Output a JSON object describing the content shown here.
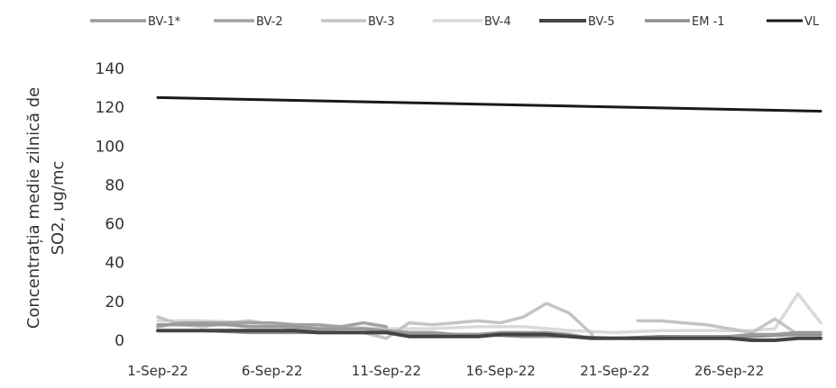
{
  "chart_data": {
    "type": "line",
    "title": "",
    "xlabel": "",
    "ylabel_lines": [
      "Concentrația medie zilnică de",
      "SO2, ug/mc"
    ],
    "ylim": [
      0,
      140
    ],
    "yticks": [
      "0",
      "20",
      "40",
      "60",
      "80",
      "100",
      "120",
      "140"
    ],
    "x_start": "2022-09-01",
    "x_end": "2022-09-30",
    "xtick_labels": [
      {
        "day": 1,
        "label": "1-Sep-22"
      },
      {
        "day": 6,
        "label": "6-Sep-22"
      },
      {
        "day": 11,
        "label": "11-Sep-22"
      },
      {
        "day": 16,
        "label": "16-Sep-22"
      },
      {
        "day": 21,
        "label": "21-Sep-22"
      },
      {
        "day": 26,
        "label": "26-Sep-22"
      }
    ],
    "grid": false,
    "legend_position": "top",
    "series": [
      {
        "name": "BV-1*",
        "color": "#9a9a9a",
        "width": 3.5,
        "points": [
          [
            1,
            8
          ],
          [
            2,
            8
          ],
          [
            3,
            8
          ],
          [
            4,
            8
          ],
          [
            5,
            7
          ],
          [
            6,
            7
          ],
          [
            7,
            7
          ],
          [
            8,
            6
          ],
          [
            9,
            6
          ],
          [
            10,
            6
          ],
          [
            11,
            5
          ],
          [
            12,
            4
          ],
          [
            13,
            4
          ],
          [
            14,
            3
          ],
          [
            15,
            3
          ],
          [
            16,
            4
          ],
          [
            17,
            4
          ],
          [
            18,
            4
          ],
          [
            19,
            3
          ],
          [
            20,
            1
          ],
          [
            21,
            1
          ],
          [
            22,
            1
          ],
          [
            23,
            1
          ],
          [
            24,
            2
          ],
          [
            25,
            2
          ],
          [
            26,
            2
          ],
          [
            27,
            3
          ],
          [
            28,
            3
          ],
          [
            29,
            4
          ],
          [
            30,
            4
          ]
        ]
      },
      {
        "name": "BV-2",
        "color": "#a3a3a3",
        "width": 3.5,
        "points": [
          [
            1,
            7
          ],
          [
            2,
            9
          ],
          [
            3,
            9
          ],
          [
            4,
            9
          ],
          [
            5,
            9
          ],
          [
            6,
            9
          ],
          [
            7,
            8
          ],
          [
            8,
            8
          ],
          [
            9,
            7
          ],
          [
            10,
            9
          ],
          [
            11,
            7
          ]
        ]
      },
      {
        "name": "BV-3",
        "color": "#c4c4c4",
        "width": 3.5,
        "points": [
          [
            1,
            12
          ],
          [
            2,
            8
          ],
          [
            3,
            7
          ],
          [
            4,
            9
          ],
          [
            5,
            10
          ],
          [
            6,
            8
          ],
          [
            7,
            6
          ],
          [
            8,
            5
          ],
          [
            9,
            4
          ],
          [
            10,
            4
          ],
          [
            11,
            1
          ],
          [
            12,
            9
          ],
          [
            13,
            8
          ],
          [
            14,
            9
          ],
          [
            15,
            10
          ],
          [
            16,
            9
          ],
          [
            17,
            12
          ],
          [
            18,
            19
          ],
          [
            19,
            14
          ],
          [
            20,
            3
          ],
          [
            21,
            null
          ],
          [
            22,
            10
          ],
          [
            23,
            10
          ],
          [
            24,
            9
          ],
          [
            25,
            8
          ],
          [
            26,
            6
          ],
          [
            27,
            4
          ],
          [
            28,
            11
          ],
          [
            29,
            3
          ],
          [
            30,
            null
          ]
        ]
      },
      {
        "name": "BV-4",
        "color": "#d9d9d9",
        "width": 3.5,
        "points": [
          [
            1,
            10
          ],
          [
            3,
            10
          ],
          [
            5,
            9
          ],
          [
            7,
            8
          ],
          [
            9,
            7
          ],
          [
            11,
            6
          ],
          [
            13,
            6
          ],
          [
            15,
            7
          ],
          [
            17,
            7
          ],
          [
            19,
            5
          ],
          [
            21,
            4
          ],
          [
            23,
            5
          ],
          [
            25,
            5
          ],
          [
            27,
            5
          ],
          [
            28,
            6
          ],
          [
            29,
            24
          ],
          [
            30,
            9
          ]
        ]
      },
      {
        "name": "BV-5",
        "color": "#444444",
        "width": 4,
        "points": [
          [
            1,
            5
          ],
          [
            2,
            5
          ],
          [
            3,
            5
          ],
          [
            4,
            5
          ],
          [
            5,
            5
          ],
          [
            6,
            5
          ],
          [
            7,
            5
          ],
          [
            8,
            4
          ],
          [
            9,
            4
          ],
          [
            10,
            4
          ],
          [
            11,
            4
          ],
          [
            12,
            2
          ],
          [
            13,
            2
          ],
          [
            14,
            2
          ],
          [
            15,
            2
          ],
          [
            16,
            3
          ],
          [
            17,
            3
          ],
          [
            18,
            3
          ],
          [
            19,
            2
          ],
          [
            20,
            1
          ],
          [
            21,
            1
          ],
          [
            22,
            1
          ],
          [
            23,
            1
          ],
          [
            24,
            1
          ],
          [
            25,
            1
          ],
          [
            26,
            1
          ],
          [
            27,
            0
          ],
          [
            28,
            0
          ],
          [
            29,
            1
          ],
          [
            30,
            1
          ]
        ]
      },
      {
        "name": "EM -1",
        "color": "#8f8f8f",
        "width": 3.5,
        "points": [
          [
            1,
            5
          ],
          [
            3,
            5
          ],
          [
            5,
            4
          ],
          [
            7,
            4
          ],
          [
            9,
            4
          ],
          [
            11,
            4
          ],
          [
            13,
            3
          ],
          [
            15,
            3
          ],
          [
            17,
            2
          ],
          [
            19,
            2
          ],
          [
            21,
            1
          ],
          [
            23,
            2
          ],
          [
            25,
            2
          ],
          [
            27,
            2
          ],
          [
            29,
            3
          ],
          [
            30,
            3
          ]
        ]
      },
      {
        "name": "VL",
        "color": "#1a1a1a",
        "width": 3,
        "points": [
          [
            1,
            125
          ],
          [
            30,
            118
          ]
        ]
      }
    ]
  }
}
